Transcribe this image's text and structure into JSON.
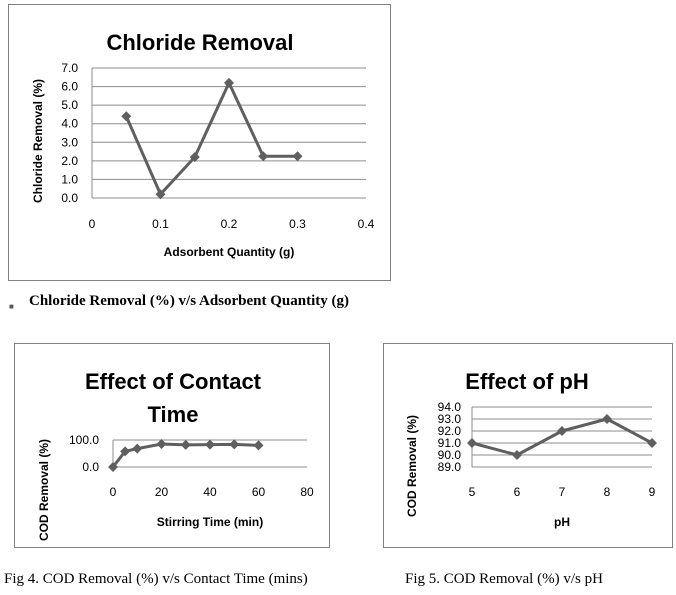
{
  "chart_data": [
    {
      "type": "line",
      "title": "Chloride Removal",
      "xlabel": "Adsorbent Quantity (g)",
      "ylabel": "Chloride Removal (%)",
      "x": [
        0.05,
        0.1,
        0.15,
        0.2,
        0.25,
        0.3
      ],
      "series": [
        {
          "name": "Chloride Removal",
          "values": [
            4.4,
            0.2,
            2.2,
            6.2,
            2.25,
            2.25
          ]
        }
      ],
      "xlim": [
        0,
        0.4
      ],
      "ylim": [
        0,
        7
      ],
      "xticks": [
        "0",
        "0.1",
        "0.2",
        "0.3",
        "0.4"
      ],
      "yticks": [
        "0.0",
        "1.0",
        "2.0",
        "3.0",
        "4.0",
        "5.0",
        "6.0",
        "7.0"
      ],
      "grid": true
    },
    {
      "type": "line",
      "title": "Effect of Contact Time",
      "xlabel": "Stirring Time (min)",
      "ylabel": "COD Removal (%)",
      "x": [
        0,
        5,
        10,
        20,
        30,
        40,
        50,
        60
      ],
      "series": [
        {
          "name": "COD Removal",
          "values": [
            0,
            58,
            68,
            85,
            82,
            83,
            84,
            80
          ]
        }
      ],
      "xlim": [
        0,
        80
      ],
      "ylim": [
        0,
        100
      ],
      "xticks": [
        "0",
        "20",
        "40",
        "60",
        "80"
      ],
      "yticks": [
        "0.0",
        "100.0"
      ],
      "grid": true
    },
    {
      "type": "line",
      "title": "Effect of pH",
      "xlabel": "pH",
      "ylabel": "COD Removal (%)",
      "x": [
        5,
        6,
        7,
        8,
        9
      ],
      "series": [
        {
          "name": "COD Removal",
          "values": [
            91,
            90,
            92,
            93,
            91
          ]
        }
      ],
      "xlim": [
        5,
        9
      ],
      "ylim": [
        89,
        94
      ],
      "xticks": [
        "5",
        "6",
        "7",
        "8",
        "9"
      ],
      "yticks": [
        "89.0",
        "90.0",
        "91.0",
        "92.0",
        "93.0",
        "94.0"
      ],
      "grid": true
    }
  ],
  "captions": {
    "chloride": "Chloride Removal (%) v/s Adsorbent Quantity (g)",
    "fig4": "Fig 4. COD Removal (%) v/s Contact Time (mins)",
    "fig5": "Fig 5. COD Removal (%) v/s pH"
  },
  "colors": {
    "series": "#5f5f5f",
    "grid": "#8c8c8c",
    "frame": "#808080"
  }
}
